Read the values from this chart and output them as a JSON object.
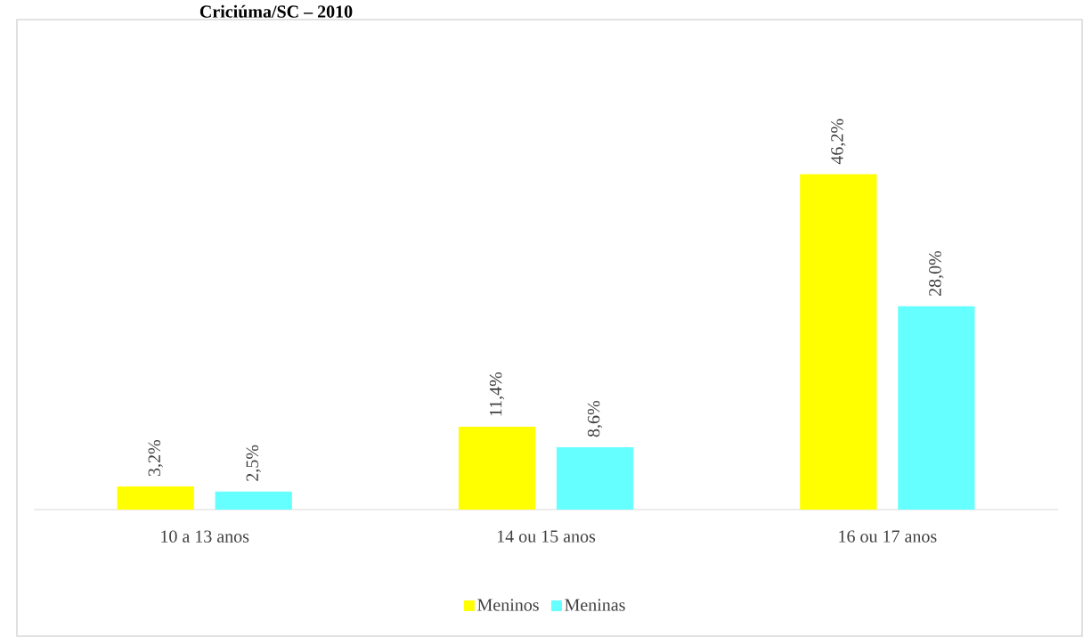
{
  "chart_data": {
    "type": "bar",
    "title": "Criciúma/SC – 2010",
    "categories": [
      "10 a 13 anos",
      "14 ou 15 anos",
      "16 ou 17 anos"
    ],
    "series": [
      {
        "name": "Meninos",
        "color": "#ffff00",
        "values": [
          3.2,
          11.4,
          46.2
        ],
        "value_labels": [
          "3,2%",
          "11,4%",
          "46,2%"
        ]
      },
      {
        "name": "Meninas",
        "color": "#66ffff",
        "values": [
          2.5,
          8.6,
          28.0
        ],
        "value_labels": [
          "2,5%",
          "8,6%",
          "28,0%"
        ]
      }
    ],
    "legend": "bottom"
  }
}
